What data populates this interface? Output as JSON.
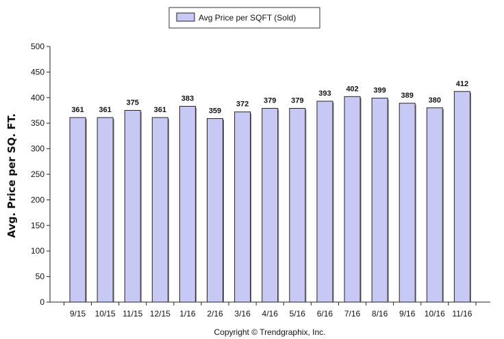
{
  "chart_data": {
    "type": "bar",
    "categories": [
      "9/15",
      "10/15",
      "11/15",
      "12/15",
      "1/16",
      "2/16",
      "3/16",
      "4/16",
      "5/16",
      "6/16",
      "7/16",
      "8/16",
      "9/16",
      "10/16",
      "11/16"
    ],
    "series": [
      {
        "name": "Avg Price per SQFT (Sold)",
        "values": [
          361,
          361,
          375,
          361,
          383,
          359,
          372,
          379,
          379,
          393,
          402,
          399,
          389,
          380,
          412
        ]
      }
    ],
    "ylabel": "Avg. Price per SQ. FT.",
    "xlabel": "",
    "ylim": [
      0,
      500
    ],
    "yticks": [
      0,
      50,
      100,
      150,
      200,
      250,
      300,
      350,
      400,
      450,
      500
    ],
    "grid": false,
    "legend_position": "top-center",
    "bar_color": "#c8c8f4",
    "bar_edge_color": "#222222"
  },
  "copyright": "Copyright © Trendgraphix, Inc."
}
